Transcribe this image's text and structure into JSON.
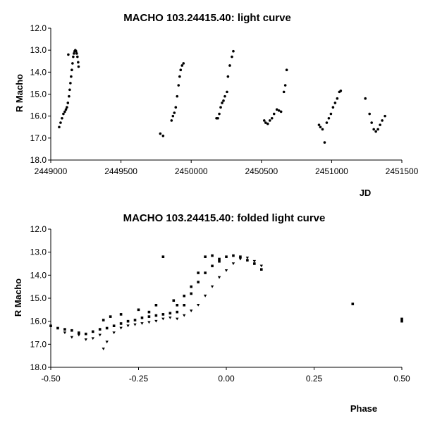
{
  "chart_data": [
    {
      "type": "scatter",
      "title": "MACHO 103.24415.40: light curve",
      "xlabel": "JD",
      "ylabel": "R Macho",
      "xlim": [
        2449000,
        2451500
      ],
      "ylim": [
        12.0,
        18.0
      ],
      "y_reversed": true,
      "grid": false,
      "x_ticks": [
        "2449000",
        "2449500",
        "2450000",
        "2450500",
        "2451000",
        "2451500"
      ],
      "y_ticks": [
        "12.0",
        "13.0",
        "14.0",
        "15.0",
        "16.0",
        "17.0",
        "18.0"
      ],
      "series": [
        {
          "marker": "dot",
          "points": [
            [
              2449060,
              16.5
            ],
            [
              2449070,
              16.3
            ],
            [
              2449080,
              16.1
            ],
            [
              2449090,
              15.9
            ],
            [
              2449100,
              15.8
            ],
            [
              2449108,
              15.7
            ],
            [
              2449115,
              15.6
            ],
            [
              2449122,
              15.4
            ],
            [
              2449130,
              15.1
            ],
            [
              2449135,
              14.8
            ],
            [
              2449140,
              14.5
            ],
            [
              2449145,
              14.2
            ],
            [
              2449150,
              13.9
            ],
            [
              2449155,
              13.6
            ],
            [
              2449160,
              13.3
            ],
            [
              2449165,
              13.15
            ],
            [
              2449170,
              13.05
            ],
            [
              2449175,
              13.0
            ],
            [
              2449180,
              13.05
            ],
            [
              2449185,
              13.15
            ],
            [
              2449190,
              13.3
            ],
            [
              2449195,
              13.55
            ],
            [
              2449198,
              13.75
            ],
            [
              2449125,
              13.2
            ],
            [
              2449780,
              16.8
            ],
            [
              2449800,
              16.9
            ],
            [
              2449860,
              16.2
            ],
            [
              2449870,
              16.0
            ],
            [
              2449880,
              15.85
            ],
            [
              2449890,
              15.6
            ],
            [
              2449900,
              15.1
            ],
            [
              2449910,
              14.6
            ],
            [
              2449918,
              14.2
            ],
            [
              2449925,
              13.9
            ],
            [
              2449935,
              13.7
            ],
            [
              2449945,
              13.6
            ],
            [
              2450180,
              16.1
            ],
            [
              2450190,
              16.1
            ],
            [
              2450200,
              15.9
            ],
            [
              2450210,
              15.6
            ],
            [
              2450220,
              15.4
            ],
            [
              2450230,
              15.3
            ],
            [
              2450240,
              15.1
            ],
            [
              2450255,
              14.9
            ],
            [
              2450262,
              14.2
            ],
            [
              2450275,
              13.7
            ],
            [
              2450290,
              13.3
            ],
            [
              2450300,
              13.05
            ],
            [
              2450520,
              16.2
            ],
            [
              2450530,
              16.3
            ],
            [
              2450545,
              16.35
            ],
            [
              2450560,
              16.2
            ],
            [
              2450575,
              16.1
            ],
            [
              2450590,
              15.9
            ],
            [
              2450610,
              15.7
            ],
            [
              2450625,
              15.75
            ],
            [
              2450640,
              15.8
            ],
            [
              2450660,
              14.9
            ],
            [
              2450670,
              14.6
            ],
            [
              2450680,
              13.9
            ],
            [
              2450910,
              16.4
            ],
            [
              2450920,
              16.5
            ],
            [
              2450935,
              16.6
            ],
            [
              2450950,
              17.2
            ],
            [
              2450965,
              16.3
            ],
            [
              2450980,
              16.1
            ],
            [
              2450995,
              15.9
            ],
            [
              2451010,
              15.6
            ],
            [
              2451025,
              15.4
            ],
            [
              2451040,
              15.2
            ],
            [
              2451055,
              14.9
            ],
            [
              2451065,
              14.85
            ],
            [
              2451240,
              15.2
            ],
            [
              2451270,
              15.9
            ],
            [
              2451285,
              16.3
            ],
            [
              2451300,
              16.6
            ],
            [
              2451315,
              16.7
            ],
            [
              2451330,
              16.6
            ],
            [
              2451345,
              16.4
            ],
            [
              2451360,
              16.2
            ],
            [
              2451380,
              16.0
            ]
          ]
        }
      ]
    },
    {
      "type": "scatter",
      "title": "MACHO 103.24415.40: folded light curve",
      "xlabel": "Phase",
      "ylabel": "R Macho",
      "xlim": [
        -0.5,
        0.5
      ],
      "ylim": [
        12.0,
        18.0
      ],
      "y_reversed": true,
      "grid": false,
      "x_ticks": [
        "-0.50",
        "-0.25",
        "0.00",
        "0.25",
        "0.50"
      ],
      "y_ticks": [
        "12.0",
        "13.0",
        "14.0",
        "15.0",
        "16.0",
        "17.0",
        "18.0"
      ],
      "series": [
        {
          "marker": "square",
          "points": [
            [
              -0.5,
              16.2
            ],
            [
              -0.48,
              16.3
            ],
            [
              -0.46,
              16.35
            ],
            [
              -0.44,
              16.4
            ],
            [
              -0.42,
              16.5
            ],
            [
              -0.4,
              16.55
            ],
            [
              -0.38,
              16.45
            ],
            [
              -0.36,
              16.35
            ],
            [
              -0.34,
              16.3
            ],
            [
              -0.32,
              16.2
            ],
            [
              -0.3,
              16.1
            ],
            [
              -0.28,
              16.0
            ],
            [
              -0.26,
              15.95
            ],
            [
              -0.24,
              15.85
            ],
            [
              -0.22,
              15.8
            ],
            [
              -0.2,
              15.75
            ],
            [
              -0.18,
              15.7
            ],
            [
              -0.16,
              15.65
            ],
            [
              -0.14,
              15.6
            ],
            [
              -0.12,
              15.3
            ],
            [
              -0.1,
              14.8
            ],
            [
              -0.08,
              14.3
            ],
            [
              -0.06,
              13.9
            ],
            [
              -0.04,
              13.6
            ],
            [
              -0.02,
              13.4
            ],
            [
              0.0,
              13.2
            ],
            [
              0.02,
              13.15
            ],
            [
              0.04,
              13.2
            ],
            [
              0.06,
              13.35
            ],
            [
              0.08,
              13.5
            ],
            [
              0.1,
              13.75
            ],
            [
              -0.18,
              13.2
            ],
            [
              0.36,
              15.25
            ],
            [
              0.5,
              15.9
            ],
            [
              0.5,
              16.0
            ]
          ]
        },
        {
          "marker": "square",
          "points": [
            [
              -0.3,
              15.7
            ],
            [
              -0.25,
              15.5
            ],
            [
              -0.2,
              15.3
            ],
            [
              -0.15,
              15.1
            ],
            [
              -0.12,
              14.9
            ],
            [
              -0.1,
              14.5
            ],
            [
              -0.08,
              13.9
            ],
            [
              -0.06,
              13.2
            ],
            [
              -0.04,
              13.15
            ],
            [
              -0.02,
              13.3
            ],
            [
              -0.35,
              15.95
            ],
            [
              -0.33,
              15.8
            ],
            [
              -0.22,
              15.6
            ],
            [
              -0.14,
              15.3
            ]
          ]
        },
        {
          "marker": "triangle",
          "points": [
            [
              -0.46,
              16.5
            ],
            [
              -0.44,
              16.7
            ],
            [
              -0.42,
              16.6
            ],
            [
              -0.4,
              16.8
            ],
            [
              -0.38,
              16.75
            ],
            [
              -0.36,
              16.6
            ],
            [
              -0.35,
              17.2
            ],
            [
              -0.34,
              16.9
            ],
            [
              -0.32,
              16.5
            ],
            [
              -0.3,
              16.3
            ],
            [
              -0.28,
              16.2
            ],
            [
              -0.26,
              16.15
            ],
            [
              -0.24,
              16.1
            ],
            [
              -0.22,
              16.05
            ],
            [
              -0.2,
              16.0
            ],
            [
              -0.18,
              15.9
            ],
            [
              -0.16,
              15.85
            ],
            [
              -0.14,
              15.9
            ],
            [
              -0.12,
              15.75
            ],
            [
              -0.1,
              15.55
            ],
            [
              -0.08,
              15.3
            ],
            [
              -0.06,
              14.9
            ],
            [
              -0.04,
              14.5
            ],
            [
              -0.02,
              14.1
            ],
            [
              0.0,
              13.8
            ],
            [
              0.02,
              13.5
            ],
            [
              0.04,
              13.3
            ],
            [
              0.06,
              13.25
            ],
            [
              0.08,
              13.4
            ],
            [
              0.1,
              13.6
            ]
          ]
        }
      ]
    }
  ]
}
